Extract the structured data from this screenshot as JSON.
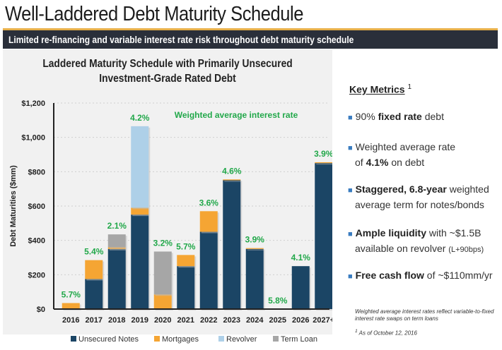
{
  "header": {
    "title": "Well-Laddered Debt Maturity Schedule",
    "subtitle": "Limited re-financing and variable interest rate risk throughout debt maturity schedule"
  },
  "chart_data": {
    "type": "bar",
    "stacked": true,
    "title_line1": "Laddered Maturity Schedule with Primarily Unsecured",
    "title_line2": "Investment-Grade Rated Debt",
    "annotation": "Weighted average interest rate",
    "ylabel": "Debt Maturities ($mm)",
    "xlabel": "",
    "ylim": [
      0,
      1200
    ],
    "yticks": [
      0,
      200,
      400,
      600,
      800,
      1000,
      1200
    ],
    "ytick_labels": [
      "$0",
      "$200",
      "$400",
      "$600",
      "$800",
      "$1,000",
      "$1,200"
    ],
    "grid": true,
    "legend_position": "bottom",
    "categories": [
      "2016",
      "2017",
      "2018",
      "2019",
      "2020",
      "2021",
      "2022",
      "2023",
      "2024",
      "2025",
      "2026",
      "2027+"
    ],
    "series": [
      {
        "name": "Unsecured Notes",
        "color": "#1b4565",
        "values": [
          0,
          175,
          350,
          550,
          0,
          250,
          450,
          750,
          350,
          0,
          250,
          850
        ]
      },
      {
        "name": "Mortgages",
        "color": "#f5a533",
        "values": [
          35,
          110,
          10,
          40,
          85,
          65,
          120,
          5,
          5,
          0,
          0,
          5
        ]
      },
      {
        "name": "Revolver",
        "color": "#aed0e8",
        "values": [
          0,
          0,
          0,
          475,
          0,
          0,
          0,
          0,
          0,
          0,
          0,
          0
        ]
      },
      {
        "name": "Term Loan",
        "color": "#a6a6a6",
        "values": [
          0,
          0,
          75,
          0,
          250,
          0,
          0,
          0,
          0,
          0,
          0,
          0
        ]
      }
    ],
    "rate_labels": [
      "5.7%",
      "5.4%",
      "2.1%",
      "4.2%",
      "3.2%",
      "5.7%",
      "3.6%",
      "4.6%",
      "3.9%",
      "5.8%",
      "4.1%",
      "3.9%"
    ],
    "rate_color": "#22a84a"
  },
  "key_metrics": {
    "heading": "Key Metrics",
    "heading_sup": "1",
    "items": [
      {
        "pre": "90% ",
        "bold": "fixed rate",
        "post": " debt",
        "line2": ""
      },
      {
        "pre": "Weighted average rate",
        "bold": "",
        "post": "",
        "line2_pre": "of ",
        "line2_bold": "4.1%",
        "line2_post": " on debt"
      },
      {
        "pre": "",
        "bold": "Staggered, 6.8-year",
        "post": " weighted",
        "line2": "average term for notes/bonds"
      },
      {
        "pre": "",
        "bold": "Ample liquidity",
        "post": " with ~$1.5B",
        "line2": "available on revolver",
        "line2_small": "(L+90bps)"
      },
      {
        "pre": "",
        "bold": "Free cash flow",
        "post": " of ~$110mm/yr",
        "line2": ""
      }
    ],
    "footnote1": "Weighted average interest rates reflect variable-to-fixed interest rate swaps on term loans",
    "footnote2_sup": "1",
    "footnote2": "As of October 12, 2016"
  }
}
